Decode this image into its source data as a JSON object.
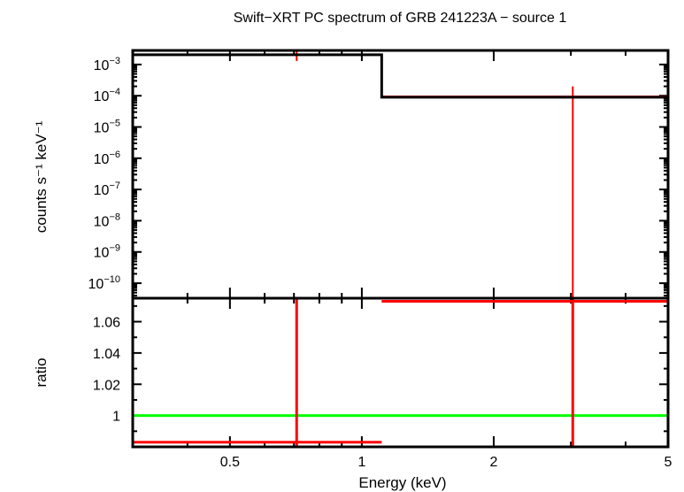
{
  "chart_data": {
    "type": "line",
    "title": "Swift−XRT PC spectrum of GRB 241223A − source 1",
    "xlabel": "Energy (keV)",
    "xscale": "log",
    "xlim": [
      0.3,
      5
    ],
    "x_ticks": [
      {
        "v": 0.5,
        "label": "0.5"
      },
      {
        "v": 1,
        "label": "1"
      },
      {
        "v": 2,
        "label": "2"
      },
      {
        "v": 5,
        "label": "5"
      }
    ],
    "panels": [
      {
        "name": "spectrum",
        "ylabel": "counts s⁻¹ keV⁻¹",
        "yscale": "log",
        "ylim_exp": [
          -10.48,
          -2.55
        ],
        "y_ticks": [
          {
            "exp": -3,
            "label": "10",
            "sup": "−3"
          },
          {
            "exp": -4,
            "label": "10",
            "sup": "−4"
          },
          {
            "exp": -5,
            "label": "10",
            "sup": "−5"
          },
          {
            "exp": -6,
            "label": "10",
            "sup": "−6"
          },
          {
            "exp": -7,
            "label": "10",
            "sup": "−7"
          },
          {
            "exp": -8,
            "label": "10",
            "sup": "−8"
          },
          {
            "exp": -9,
            "label": "10",
            "sup": "−9"
          },
          {
            "exp": -10,
            "label": "10",
            "sup": "−10"
          }
        ],
        "data": [
          {
            "x_lo": 0.3,
            "x_hi": 1.11,
            "x_c": 0.71,
            "y": 0.00205,
            "y_lo": 0.0013,
            "y_hi": 0.003
          },
          {
            "x_lo": 1.11,
            "x_hi": 5,
            "x_c": 3.03,
            "y": 9.5e-05,
            "y_lo": 1e-11,
            "y_hi": 0.0002
          }
        ],
        "model": [
          {
            "x_lo": 0.3,
            "x_hi": 1.11,
            "y": 0.00205
          },
          {
            "x_lo": 1.11,
            "x_hi": 5,
            "y": 9e-05
          }
        ]
      },
      {
        "name": "ratio",
        "ylabel": "ratio",
        "ylim": [
          0.98,
          1.075
        ],
        "y_ticks": [
          {
            "v": 1,
            "label": "1"
          },
          {
            "v": 1.02,
            "label": "1.02"
          },
          {
            "v": 1.04,
            "label": "1.04"
          },
          {
            "v": 1.06,
            "label": "1.06"
          }
        ],
        "reference": 1,
        "data": [
          {
            "x_lo": 0.3,
            "x_hi": 1.11,
            "x_c": 0.71,
            "y": 0.983,
            "y_lo": 0.9,
            "y_hi": 1.2
          },
          {
            "x_lo": 1.11,
            "x_hi": 5,
            "x_c": 3.03,
            "y": 1.073,
            "y_lo": 0.9,
            "y_hi": 1.2
          }
        ]
      }
    ],
    "colors": {
      "data": "#ff0000",
      "model": "#000000",
      "reference": "#00ff00"
    }
  }
}
